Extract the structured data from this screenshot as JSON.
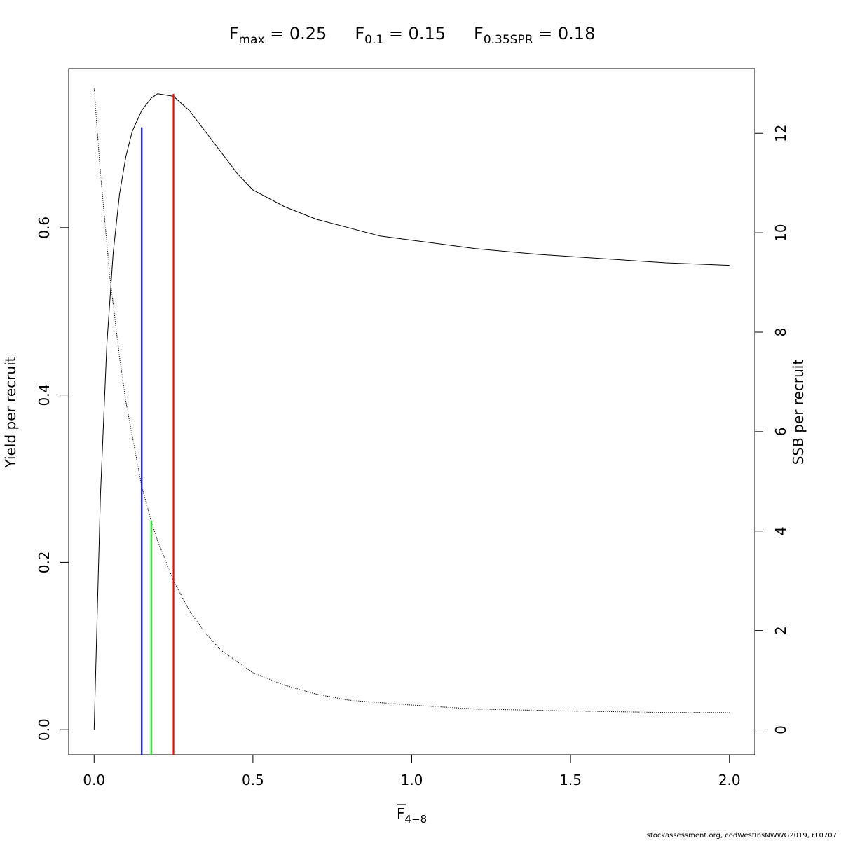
{
  "chart_data": {
    "type": "line",
    "title_parts": {
      "fmax": {
        "main": "F",
        "sub": "max",
        "rest": " = 0.25"
      },
      "f01": {
        "main": "F",
        "sub": "0.1",
        "rest": " = 0.15"
      },
      "fspr": {
        "main": "F",
        "sub": "0.35SPR",
        "rest": " = 0.18"
      }
    },
    "xlabel": {
      "main": "F",
      "sub": "4−8"
    },
    "ylabel_left": "Yield per recruit",
    "ylabel_right": "SSB per recruit",
    "x_ticks": [
      "0.0",
      "0.5",
      "1.0",
      "1.5",
      "2.0"
    ],
    "x_tick_values": [
      0,
      0.5,
      1.0,
      1.5,
      2.0
    ],
    "y_left_ticks": [
      "0.0",
      "0.2",
      "0.4",
      "0.6"
    ],
    "y_left_tick_values": [
      0,
      0.2,
      0.4,
      0.6
    ],
    "y_right_ticks": [
      "0",
      "2",
      "4",
      "6",
      "8",
      "10",
      "12"
    ],
    "y_right_tick_values": [
      0,
      2,
      4,
      6,
      8,
      10,
      12
    ],
    "xlim": [
      -0.08,
      2.08
    ],
    "ylim_left": [
      -0.03,
      0.79
    ],
    "ylim_right": [
      -0.5,
      13.3
    ],
    "series": [
      {
        "role": "yield-per-recruit",
        "axis": "left",
        "style": "solid",
        "x": [
          0,
          0.02,
          0.04,
          0.06,
          0.08,
          0.1,
          0.12,
          0.15,
          0.18,
          0.2,
          0.25,
          0.3,
          0.35,
          0.4,
          0.45,
          0.5,
          0.6,
          0.7,
          0.8,
          0.9,
          1.0,
          1.2,
          1.4,
          1.6,
          1.8,
          2.0
        ],
        "y": [
          0.0,
          0.28,
          0.46,
          0.57,
          0.64,
          0.685,
          0.715,
          0.74,
          0.755,
          0.76,
          0.757,
          0.74,
          0.715,
          0.69,
          0.665,
          0.645,
          0.625,
          0.61,
          0.6,
          0.59,
          0.585,
          0.575,
          0.568,
          0.563,
          0.558,
          0.555
        ]
      },
      {
        "role": "ssb-per-recruit",
        "axis": "right",
        "style": "dotted",
        "x": [
          0,
          0.02,
          0.05,
          0.08,
          0.1,
          0.15,
          0.18,
          0.2,
          0.25,
          0.3,
          0.35,
          0.4,
          0.5,
          0.6,
          0.7,
          0.8,
          1.0,
          1.2,
          1.5,
          1.8,
          2.0
        ],
        "y": [
          12.9,
          11.2,
          9.1,
          7.5,
          6.6,
          4.9,
          4.2,
          3.8,
          3.0,
          2.4,
          1.95,
          1.6,
          1.15,
          0.9,
          0.72,
          0.6,
          0.5,
          0.42,
          0.38,
          0.35,
          0.35
        ]
      }
    ],
    "reference_lines": [
      {
        "name": "F0.1",
        "x": 0.15,
        "y_top": 0.72,
        "color": "#0000ff"
      },
      {
        "name": "F0.35SPR",
        "x": 0.18,
        "y_top": 0.25,
        "color": "#00ff00"
      },
      {
        "name": "Fmax",
        "x": 0.25,
        "y_top": 0.76,
        "color": "#ff0000"
      }
    ],
    "grid": false
  },
  "credit": "stockassessment.org, codWestInsNWWG2019, r10707"
}
